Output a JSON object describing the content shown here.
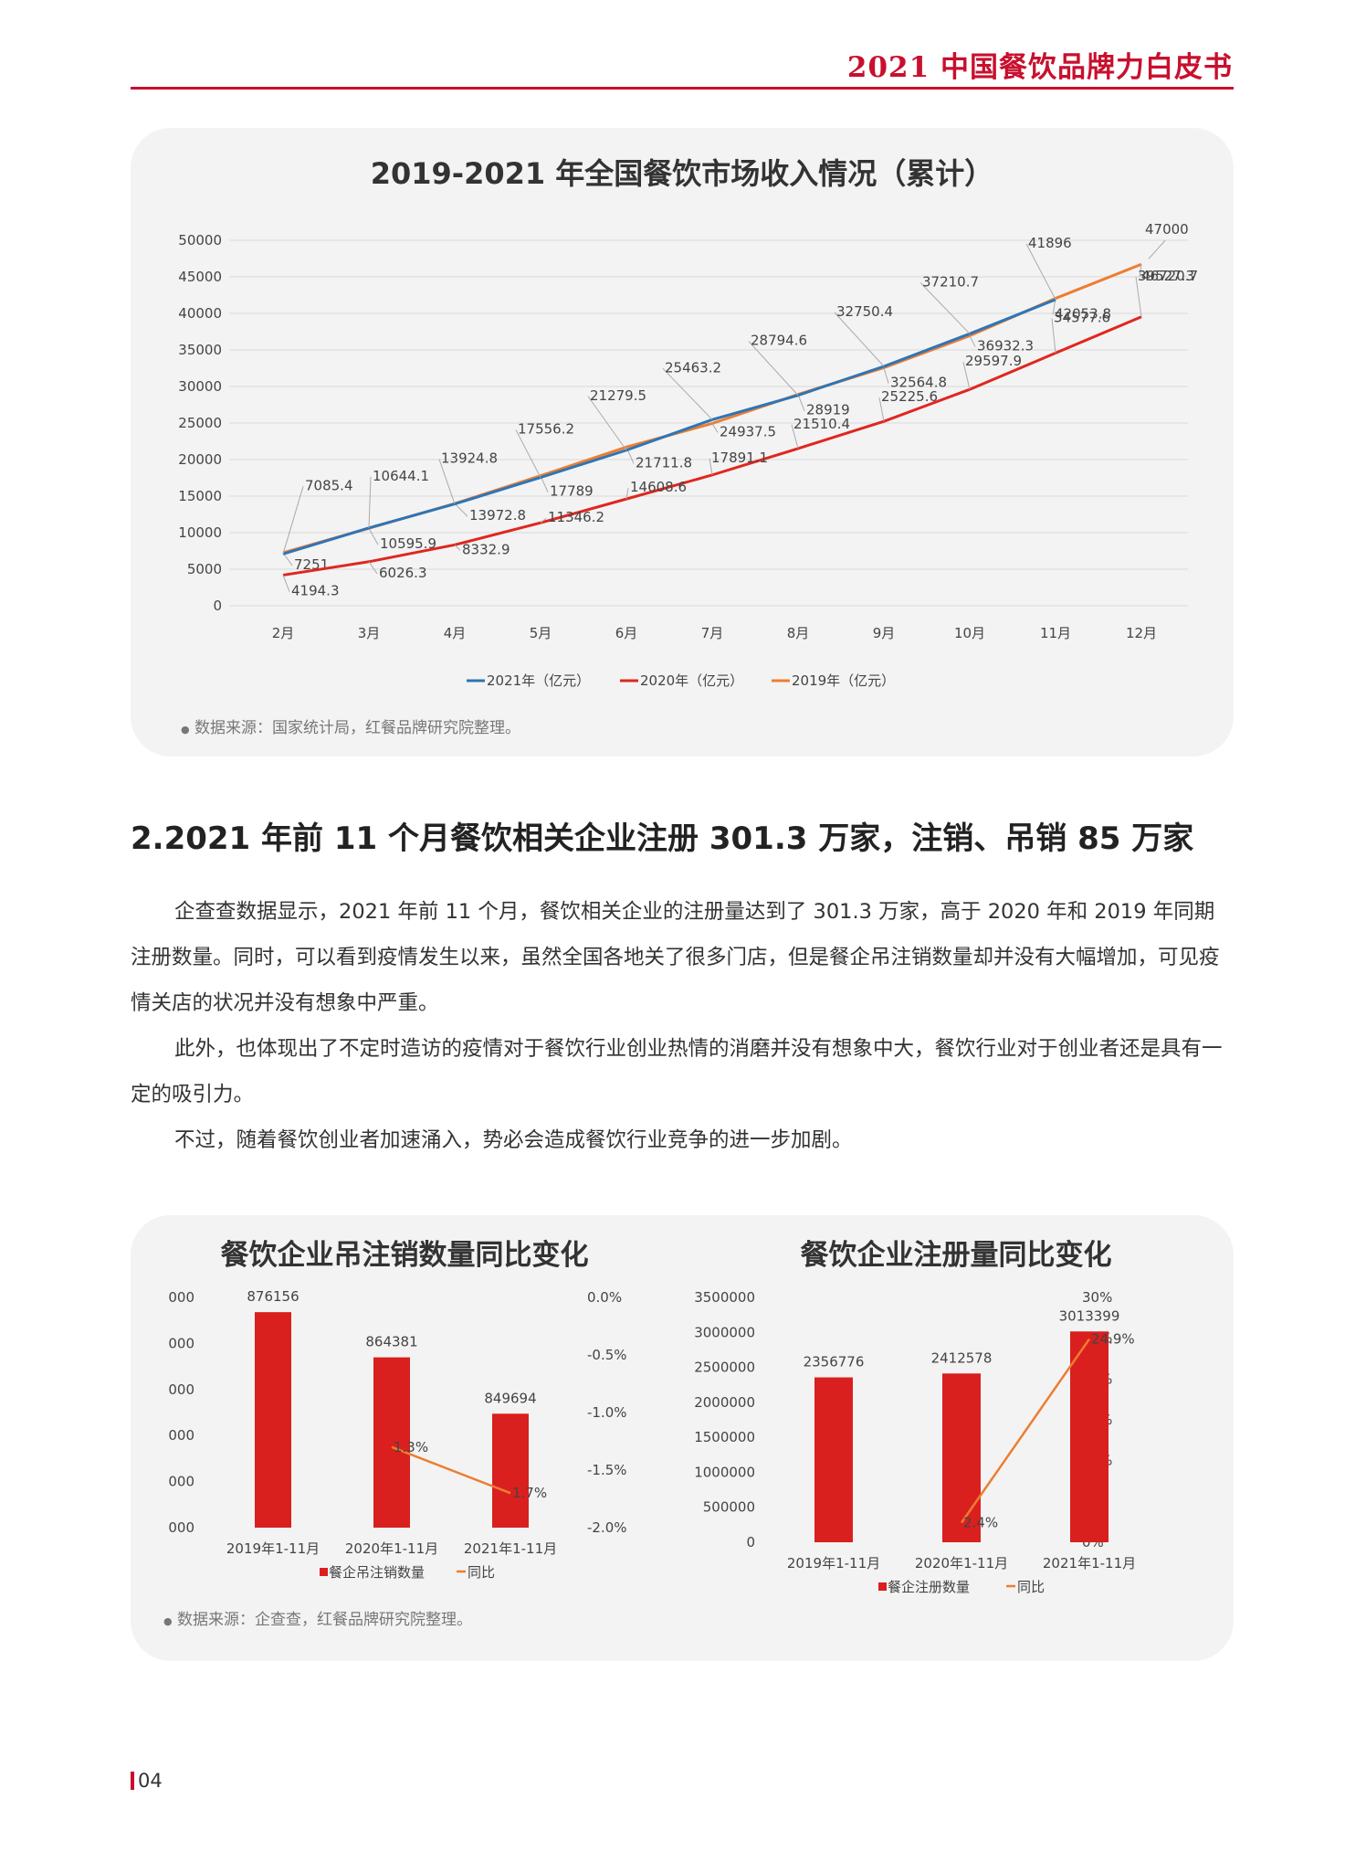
{
  "header": {
    "title": "2021 中国餐饮品牌力白皮书"
  },
  "chart1": {
    "title": "2019-2021 年全国餐饮市场收入情况（累计）",
    "source_note": "数据来源：国家统计局，红餐品牌研究院整理。"
  },
  "section": {
    "heading": "2.2021 年前 11 个月餐饮相关企业注册 301.3 万家，注销、吊销 85 万家",
    "paragraphs": [
      "企查查数据显示，2021 年前 11 个月，餐饮相关企业的注册量达到了 301.3 万家，高于 2020 年和 2019 年同期注册数量。同时，可以看到疫情发生以来，虽然全国各地关了很多门店，但是餐企吊注销数量却并没有大幅增加，可见疫情关店的状况并没有想象中严重。",
      "此外，也体现出了不定时造访的疫情对于餐饮行业创业热情的消磨并没有想象中大，餐饮行业对于创业者还是具有一定的吸引力。",
      "不过，随着餐饮创业者加速涌入，势必会造成餐饮行业竞争的进一步加剧。"
    ]
  },
  "chart2": {
    "title": "餐饮企业吊注销数量同比变化",
    "source_note": "数据来源：企查查，红餐品牌研究院整理。"
  },
  "chart3": {
    "title": "餐饮企业注册量同比变化"
  },
  "page": {
    "number": "04"
  },
  "colors": {
    "accent": "#c8102e",
    "s2021": "#2e75b6",
    "s2020": "#e0261e",
    "s2019": "#ed7d31"
  },
  "chart_data": [
    {
      "type": "line",
      "title": "2019-2021 年全国餐饮市场收入情况（累计）",
      "categories": [
        "2月",
        "3月",
        "4月",
        "5月",
        "6月",
        "7月",
        "8月",
        "9月",
        "10月",
        "11月",
        "12月"
      ],
      "ylim": [
        0,
        50000
      ],
      "yticks": [
        "0",
        "5000",
        "10000",
        "15000",
        "20000",
        "25000",
        "30000",
        "35000",
        "40000",
        "45000",
        "50000"
      ],
      "grid": true,
      "legend": "bottom",
      "series": [
        {
          "name": "2021年（亿元）",
          "color": "#2e75b6",
          "values": [
            7085.4,
            10644.1,
            13924.8,
            17556.2,
            21279.5,
            25463.2,
            28794.6,
            32750.4,
            37210.7,
            41896,
            null
          ],
          "labels": [
            "7085.4",
            "10644.1",
            "13924.8",
            "17556.2",
            "21279.5",
            "25463.2",
            "28794.6",
            "32750.4",
            "37210.7",
            "41896",
            ""
          ]
        },
        {
          "name": "2020年（亿元）",
          "color": "#e0261e",
          "values": [
            4194.3,
            6026.3,
            8332.9,
            11346.2,
            14608.6,
            17891.1,
            21510.4,
            25225.6,
            29597.9,
            34577.6,
            39527.3
          ],
          "labels": [
            "4194.3",
            "6026.3",
            "8332.9",
            "11346.2",
            "14608.6",
            "17891.1",
            "21510.4",
            "25225.6",
            "29597.9",
            "34577.6",
            "39527.3"
          ]
        },
        {
          "name": "2019年（亿元）",
          "color": "#ed7d31",
          "values": [
            7251,
            10595.9,
            13972.8,
            17789,
            21711.8,
            24937.5,
            28919,
            32564.8,
            36932.3,
            42053.8,
            46720.7
          ],
          "labels": [
            "7251",
            "10595.9",
            "13972.8",
            "17789",
            "21711.8",
            "24937.5",
            "28919",
            "32564.8",
            "36932.3",
            "42053.8",
            "46720.7"
          ]
        }
      ],
      "extra_label": "47000"
    },
    {
      "type": "bar",
      "title": "餐饮企业吊注销数量同比变化",
      "categories": [
        "2019年1-11月",
        "2020年1-11月",
        "2021年1-11月"
      ],
      "yticks_left": [
        "000",
        "000",
        "000",
        "000",
        "000",
        "000"
      ],
      "yticks_right": [
        "0.0%",
        "-0.5%",
        "-1.0%",
        "-1.5%",
        "-2.0%"
      ],
      "y2lim": [
        -2.0,
        0.0
      ],
      "legend": "bottom",
      "series": [
        {
          "name": "餐企吊注销数量",
          "type": "bar",
          "color": "#d9201e",
          "values": [
            876156,
            864381,
            849694
          ],
          "labels": [
            "876156",
            "864381",
            "849694"
          ]
        },
        {
          "name": "同比",
          "type": "line",
          "color": "#ed7d31",
          "axis": "right",
          "values": [
            null,
            -1.3,
            -1.7
          ],
          "labels": [
            "",
            "1.3%",
            "1.7%"
          ]
        }
      ]
    },
    {
      "type": "bar",
      "title": "餐饮企业注册量同比变化",
      "categories": [
        "2019年1-11月",
        "2020年1-11月",
        "2021年1-11月"
      ],
      "ylim": [
        0,
        3500000
      ],
      "yticks_left": [
        "0",
        "500000",
        "1000000",
        "1500000",
        "2000000",
        "2500000",
        "3000000",
        "3500000"
      ],
      "yticks_right": [
        "0%",
        "5%",
        "10%",
        "15%",
        "20%",
        "25%",
        "30%"
      ],
      "y2lim": [
        0,
        30
      ],
      "legend": "bottom",
      "series": [
        {
          "name": "餐企注册数量",
          "type": "bar",
          "color": "#d9201e",
          "values": [
            2356776,
            2412578,
            3013399
          ],
          "labels": [
            "2356776",
            "2412578",
            "3013399"
          ]
        },
        {
          "name": "同比",
          "type": "line",
          "color": "#ed7d31",
          "axis": "right",
          "values": [
            null,
            2.4,
            24.9
          ],
          "labels": [
            "",
            "2.4%",
            "24.9%"
          ]
        }
      ]
    }
  ]
}
